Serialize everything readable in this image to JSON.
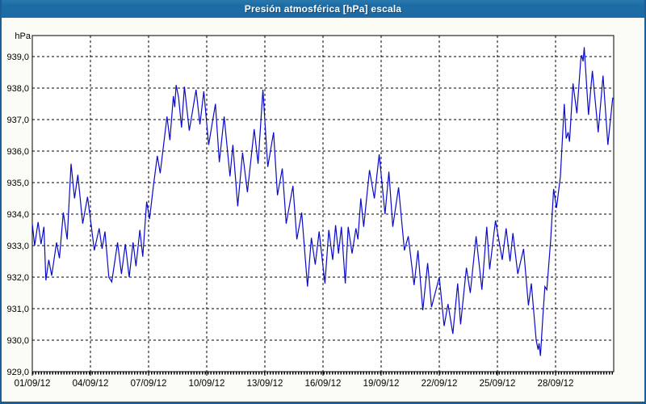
{
  "title": "Presión atmosférica [hPa] escala",
  "colors": {
    "titlebar": "#1d6ca5",
    "window_border": "#1d5f95",
    "margin_background": "#fafcf5",
    "plot_background": "#ffffff",
    "grid": "#000000",
    "axis_text": "#000000",
    "title_text": "#ffffff",
    "series": "#0a0ac8"
  },
  "chart_data": {
    "type": "line",
    "title": "Presión atmosférica [hPa] escala",
    "y_unit": "hPa",
    "grid": "dashed",
    "legend": "none",
    "ylim": [
      929,
      939.67
    ],
    "x_range_days": [
      1,
      31
    ],
    "y_ticks": [
      {
        "value": 939,
        "label": "939,0"
      },
      {
        "value": 938,
        "label": "938,0"
      },
      {
        "value": 937,
        "label": "937,0"
      },
      {
        "value": 936,
        "label": "936,0"
      },
      {
        "value": 935,
        "label": "935,0"
      },
      {
        "value": 934,
        "label": "934,0"
      },
      {
        "value": 933,
        "label": "933,0"
      },
      {
        "value": 932,
        "label": "932,0"
      },
      {
        "value": 931,
        "label": "931,0"
      },
      {
        "value": 930,
        "label": "930,0"
      },
      {
        "value": 929,
        "label": "929,0"
      }
    ],
    "x_ticks": [
      {
        "day": 1,
        "label": "01/09/12"
      },
      {
        "day": 4,
        "label": "04/09/12"
      },
      {
        "day": 7,
        "label": "07/09/12"
      },
      {
        "day": 10,
        "label": "10/09/12"
      },
      {
        "day": 13,
        "label": "13/09/12"
      },
      {
        "day": 16,
        "label": "16/09/12"
      },
      {
        "day": 19,
        "label": "19/09/12"
      },
      {
        "day": 22,
        "label": "22/09/12"
      },
      {
        "day": 25,
        "label": "25/09/12"
      },
      {
        "day": 28,
        "label": "28/09/12"
      }
    ],
    "series": [
      {
        "name": "Presión atmosférica",
        "color": "#0a0ac8",
        "points": [
          [
            1.0,
            933.7
          ],
          [
            1.12,
            933.0
          ],
          [
            1.3,
            933.75
          ],
          [
            1.45,
            933.05
          ],
          [
            1.6,
            933.6
          ],
          [
            1.7,
            931.9
          ],
          [
            1.85,
            932.55
          ],
          [
            2.0,
            932.05
          ],
          [
            2.25,
            933.1
          ],
          [
            2.4,
            932.6
          ],
          [
            2.6,
            934.05
          ],
          [
            2.8,
            933.2
          ],
          [
            3.0,
            935.6
          ],
          [
            3.18,
            934.5
          ],
          [
            3.35,
            935.25
          ],
          [
            3.6,
            933.7
          ],
          [
            3.85,
            934.55
          ],
          [
            4.05,
            933.6
          ],
          [
            4.2,
            932.85
          ],
          [
            4.45,
            933.55
          ],
          [
            4.6,
            932.9
          ],
          [
            4.75,
            933.45
          ],
          [
            4.95,
            932.0
          ],
          [
            5.1,
            931.85
          ],
          [
            5.4,
            933.1
          ],
          [
            5.6,
            932.1
          ],
          [
            5.8,
            933.05
          ],
          [
            6.0,
            932.0
          ],
          [
            6.2,
            933.1
          ],
          [
            6.35,
            932.35
          ],
          [
            6.55,
            933.5
          ],
          [
            6.7,
            932.65
          ],
          [
            6.9,
            934.4
          ],
          [
            7.05,
            933.85
          ],
          [
            7.25,
            934.9
          ],
          [
            7.45,
            935.85
          ],
          [
            7.6,
            935.3
          ],
          [
            7.95,
            937.1
          ],
          [
            8.1,
            936.35
          ],
          [
            8.28,
            937.75
          ],
          [
            8.35,
            937.4
          ],
          [
            8.42,
            938.1
          ],
          [
            8.55,
            937.7
          ],
          [
            8.7,
            936.75
          ],
          [
            8.85,
            938.05
          ],
          [
            9.1,
            936.65
          ],
          [
            9.45,
            937.95
          ],
          [
            9.65,
            936.85
          ],
          [
            9.85,
            937.9
          ],
          [
            10.1,
            936.2
          ],
          [
            10.45,
            937.5
          ],
          [
            10.65,
            935.65
          ],
          [
            10.9,
            937.1
          ],
          [
            11.2,
            935.2
          ],
          [
            11.35,
            936.2
          ],
          [
            11.6,
            934.25
          ],
          [
            11.85,
            935.95
          ],
          [
            12.1,
            934.7
          ],
          [
            12.45,
            936.7
          ],
          [
            12.65,
            935.6
          ],
          [
            12.9,
            937.95
          ],
          [
            13.15,
            935.5
          ],
          [
            13.45,
            936.6
          ],
          [
            13.65,
            934.6
          ],
          [
            13.9,
            935.45
          ],
          [
            14.1,
            933.7
          ],
          [
            14.45,
            934.9
          ],
          [
            14.65,
            933.2
          ],
          [
            14.9,
            934.05
          ],
          [
            15.2,
            931.7
          ],
          [
            15.4,
            933.25
          ],
          [
            15.6,
            932.4
          ],
          [
            15.8,
            933.45
          ],
          [
            16.1,
            931.8
          ],
          [
            16.3,
            933.5
          ],
          [
            16.5,
            932.55
          ],
          [
            16.65,
            933.65
          ],
          [
            16.8,
            932.75
          ],
          [
            16.95,
            933.6
          ],
          [
            17.15,
            931.8
          ],
          [
            17.3,
            933.6
          ],
          [
            17.5,
            932.75
          ],
          [
            17.7,
            933.55
          ],
          [
            17.8,
            933.2
          ],
          [
            17.95,
            934.5
          ],
          [
            18.1,
            933.6
          ],
          [
            18.4,
            935.4
          ],
          [
            18.65,
            934.5
          ],
          [
            18.9,
            935.9
          ],
          [
            19.2,
            934.0
          ],
          [
            19.4,
            935.35
          ],
          [
            19.6,
            933.6
          ],
          [
            19.9,
            934.85
          ],
          [
            20.2,
            932.85
          ],
          [
            20.4,
            933.3
          ],
          [
            20.7,
            931.75
          ],
          [
            20.9,
            932.85
          ],
          [
            21.15,
            930.95
          ],
          [
            21.4,
            932.45
          ],
          [
            21.6,
            931.05
          ],
          [
            22.0,
            932.0
          ],
          [
            22.25,
            930.45
          ],
          [
            22.45,
            931.15
          ],
          [
            22.7,
            930.2
          ],
          [
            22.95,
            931.8
          ],
          [
            23.1,
            930.5
          ],
          [
            23.4,
            932.3
          ],
          [
            23.6,
            931.5
          ],
          [
            23.9,
            933.3
          ],
          [
            24.2,
            931.6
          ],
          [
            24.45,
            933.6
          ],
          [
            24.6,
            932.25
          ],
          [
            24.9,
            933.8
          ],
          [
            25.25,
            932.55
          ],
          [
            25.45,
            933.55
          ],
          [
            25.65,
            932.5
          ],
          [
            25.8,
            933.4
          ],
          [
            26.05,
            932.1
          ],
          [
            26.35,
            932.9
          ],
          [
            26.6,
            931.1
          ],
          [
            26.75,
            931.8
          ],
          [
            27.0,
            930.0
          ],
          [
            27.1,
            929.7
          ],
          [
            27.15,
            929.9
          ],
          [
            27.22,
            929.5
          ],
          [
            27.35,
            930.8
          ],
          [
            27.45,
            931.7
          ],
          [
            27.55,
            931.6
          ],
          [
            27.75,
            933.2
          ],
          [
            27.9,
            934.8
          ],
          [
            28.05,
            934.2
          ],
          [
            28.25,
            935.2
          ],
          [
            28.45,
            937.5
          ],
          [
            28.55,
            936.4
          ],
          [
            28.65,
            936.6
          ],
          [
            28.72,
            936.3
          ],
          [
            28.9,
            938.15
          ],
          [
            29.1,
            937.2
          ],
          [
            29.3,
            938.9
          ],
          [
            29.35,
            939.05
          ],
          [
            29.42,
            938.85
          ],
          [
            29.48,
            939.3
          ],
          [
            29.7,
            937.15
          ],
          [
            29.9,
            938.55
          ],
          [
            30.2,
            936.6
          ],
          [
            30.45,
            938.4
          ],
          [
            30.7,
            936.2
          ],
          [
            30.95,
            937.7
          ]
        ]
      }
    ]
  }
}
